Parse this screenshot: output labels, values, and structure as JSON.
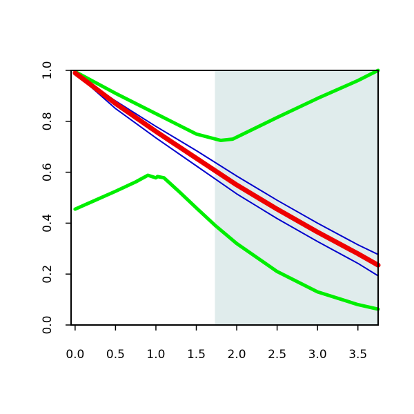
{
  "chart_data": {
    "type": "line",
    "title": "",
    "xlabel": "",
    "ylabel": "",
    "xlim": [
      -0.05,
      3.75
    ],
    "ylim": [
      0,
      1
    ],
    "x_ticks": [
      "0.0",
      "0.5",
      "1.0",
      "1.5",
      "2.0",
      "2.5",
      "3.0",
      "3.5"
    ],
    "y_ticks": [
      "0.0",
      "0.2",
      "0.4",
      "0.6",
      "0.8",
      "1.0"
    ],
    "grid": false,
    "shaded_region": {
      "x_start": 1.73,
      "x_end": 3.75,
      "color": "#e0ecec"
    },
    "series": [
      {
        "color": "#00ee00",
        "x": [
          0,
          0.25,
          0.5,
          0.75,
          0.9,
          1.0,
          1.02,
          1.1,
          1.3,
          1.5,
          1.73,
          2.0,
          2.5,
          3.0,
          3.5,
          3.75
        ],
        "y": [
          0.455,
          0.49,
          0.525,
          0.562,
          0.588,
          0.578,
          0.583,
          0.578,
          0.52,
          0.46,
          0.392,
          0.32,
          0.21,
          0.13,
          0.08,
          0.062
        ]
      },
      {
        "color": "#00ee00",
        "x": [
          0,
          0.5,
          1.0,
          1.5,
          1.8,
          1.95,
          2.5,
          3.0,
          3.5,
          3.75
        ],
        "y": [
          0.995,
          0.91,
          0.83,
          0.75,
          0.725,
          0.73,
          0.815,
          0.89,
          0.96,
          1.0
        ]
      },
      {
        "color": "#0000cc",
        "x": [
          0,
          0.5,
          1.0,
          1.5,
          2.0,
          2.5,
          3.0,
          3.5,
          3.75
        ],
        "y": [
          0.99,
          0.88,
          0.78,
          0.685,
          0.585,
          0.49,
          0.4,
          0.315,
          0.277
        ]
      },
      {
        "color": "#0000cc",
        "x": [
          0,
          0.5,
          1.0,
          1.5,
          2.0,
          2.5,
          3.0,
          3.5,
          3.75
        ],
        "y": [
          0.99,
          0.85,
          0.735,
          0.625,
          0.515,
          0.418,
          0.328,
          0.242,
          0.193
        ]
      },
      {
        "color": "#ee0000",
        "x": [
          0,
          0.5,
          1.0,
          1.5,
          2.0,
          2.5,
          3.0,
          3.5,
          3.75
        ],
        "y": [
          0.99,
          0.87,
          0.76,
          0.655,
          0.55,
          0.455,
          0.365,
          0.28,
          0.235
        ]
      }
    ]
  }
}
